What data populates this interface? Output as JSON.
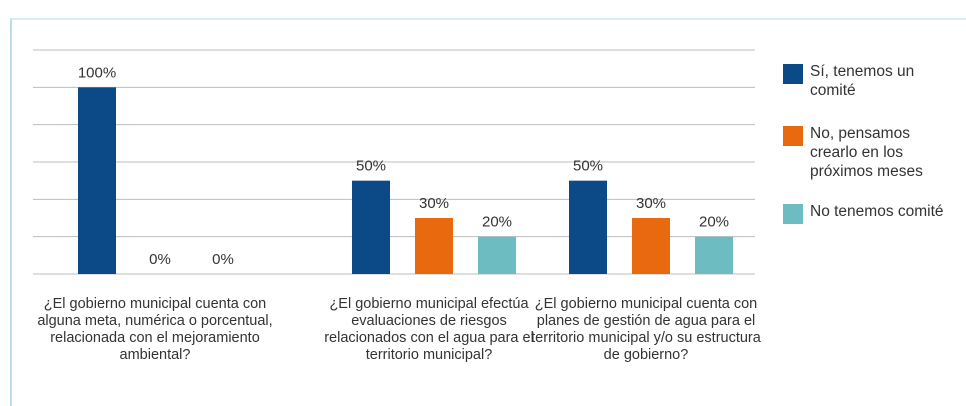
{
  "chart_data": {
    "type": "bar",
    "categories": [
      "¿El gobierno municipal cuenta con alguna meta, numérica o porcentual, relacionada con el mejoramiento ambiental?",
      "¿El gobierno municipal efectúa evaluaciones de riesgos relacionados con el agua para el territorio municipal?",
      "¿El gobierno municipal cuenta con planes de gestión de agua para el territorio municipal y/o su estructura de gobierno?"
    ],
    "series": [
      {
        "name": "Sí, tenemos un comité",
        "color": "#0b4a86",
        "values": [
          100,
          50,
          50
        ],
        "value_labels": [
          "100%",
          "50%",
          "50%"
        ]
      },
      {
        "name": "No, pensamos crearlo en los próximos meses",
        "color": "#e8690e",
        "values": [
          0,
          30,
          30
        ],
        "value_labels": [
          "0%",
          "30%",
          "30%"
        ]
      },
      {
        "name": "No tenemos comité",
        "color": "#6cbcc1",
        "values": [
          0,
          20,
          20
        ],
        "value_labels": [
          "0%",
          "20%",
          "20%"
        ]
      }
    ],
    "ylim": [
      0,
      120
    ],
    "yticks": [
      0,
      20,
      40,
      60,
      80,
      100,
      120
    ],
    "grid": true,
    "legend": "right"
  }
}
